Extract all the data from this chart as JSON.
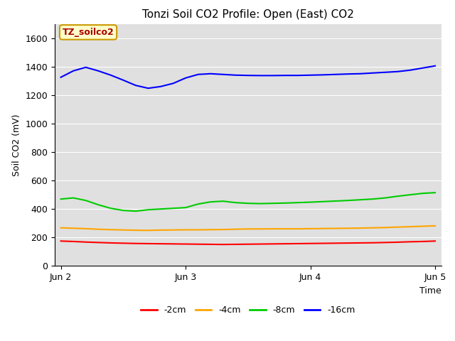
{
  "title": "Tonzi Soil CO2 Profile: Open (East) CO2",
  "xlabel": "Time",
  "ylabel": "Soil CO2 (mV)",
  "ylim": [
    0,
    1700
  ],
  "yticks": [
    0,
    200,
    400,
    600,
    800,
    1000,
    1200,
    1400,
    1600
  ],
  "annotation": "TZ_soilco2",
  "bg_color": "#e0e0e0",
  "series": {
    "-2cm": {
      "color": "#ff0000",
      "x": [
        0,
        0.1,
        0.2,
        0.3,
        0.4,
        0.5,
        0.6,
        0.7,
        0.8,
        0.9,
        1.0,
        1.1,
        1.2,
        1.3,
        1.4,
        1.5,
        1.6,
        1.7,
        1.8,
        1.9,
        2.0,
        2.1,
        2.2,
        2.3,
        2.4,
        2.5,
        2.6,
        2.7,
        2.8,
        2.9,
        3.0
      ],
      "y": [
        175,
        172,
        168,
        165,
        162,
        160,
        158,
        157,
        156,
        155,
        154,
        153,
        152,
        151,
        152,
        153,
        154,
        155,
        156,
        157,
        158,
        159,
        160,
        161,
        162,
        163,
        165,
        167,
        170,
        172,
        175
      ]
    },
    "-4cm": {
      "color": "#ffa500",
      "x": [
        0,
        0.1,
        0.2,
        0.3,
        0.4,
        0.5,
        0.6,
        0.7,
        0.8,
        0.9,
        1.0,
        1.1,
        1.2,
        1.3,
        1.4,
        1.5,
        1.6,
        1.7,
        1.8,
        1.9,
        2.0,
        2.1,
        2.2,
        2.3,
        2.4,
        2.5,
        2.6,
        2.7,
        2.8,
        2.9,
        3.0
      ],
      "y": [
        268,
        265,
        262,
        258,
        255,
        253,
        251,
        250,
        252,
        253,
        254,
        254,
        255,
        256,
        258,
        260,
        260,
        261,
        261,
        261,
        262,
        263,
        264,
        265,
        266,
        268,
        270,
        273,
        276,
        279,
        282
      ]
    },
    "-8cm": {
      "color": "#00cc00",
      "x": [
        0,
        0.1,
        0.2,
        0.3,
        0.4,
        0.5,
        0.6,
        0.7,
        0.8,
        0.9,
        1.0,
        1.1,
        1.2,
        1.3,
        1.4,
        1.5,
        1.6,
        1.7,
        1.8,
        1.9,
        2.0,
        2.1,
        2.2,
        2.3,
        2.4,
        2.5,
        2.6,
        2.7,
        2.8,
        2.9,
        3.0
      ],
      "y": [
        470,
        478,
        460,
        430,
        405,
        390,
        385,
        395,
        400,
        405,
        410,
        435,
        450,
        455,
        445,
        440,
        438,
        440,
        442,
        445,
        448,
        452,
        456,
        460,
        465,
        470,
        478,
        490,
        500,
        510,
        515
      ]
    },
    "-16cm": {
      "color": "#0000ff",
      "x": [
        0,
        0.1,
        0.2,
        0.3,
        0.4,
        0.5,
        0.6,
        0.7,
        0.8,
        0.9,
        1.0,
        1.1,
        1.2,
        1.3,
        1.4,
        1.5,
        1.6,
        1.7,
        1.8,
        1.9,
        2.0,
        2.1,
        2.2,
        2.3,
        2.4,
        2.5,
        2.6,
        2.7,
        2.8,
        2.9,
        3.0
      ],
      "y": [
        1325,
        1370,
        1395,
        1370,
        1340,
        1305,
        1268,
        1248,
        1260,
        1282,
        1320,
        1345,
        1350,
        1345,
        1340,
        1338,
        1337,
        1337,
        1338,
        1338,
        1340,
        1342,
        1345,
        1348,
        1350,
        1355,
        1360,
        1365,
        1375,
        1390,
        1405
      ]
    }
  },
  "xtick_positions": [
    0,
    1,
    2,
    3
  ],
  "xtick_labels": [
    "Jun 2",
    "Jun 3",
    "Jun 4",
    "Jun 5"
  ],
  "legend_labels": [
    "-2cm",
    "-4cm",
    "-8cm",
    "-16cm"
  ],
  "legend_colors": [
    "#ff0000",
    "#ffa500",
    "#00cc00",
    "#0000ff"
  ],
  "title_fontsize": 11,
  "axis_fontsize": 9,
  "tick_fontsize": 9
}
